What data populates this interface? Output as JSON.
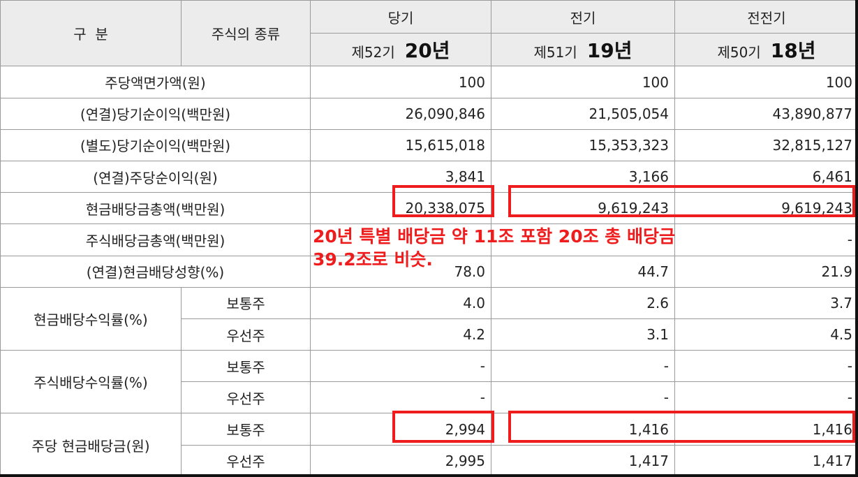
{
  "header": {
    "col_category": "구  분",
    "col_stock_type": "주식의 종류",
    "current": {
      "label": "당기",
      "period": "제52기",
      "year_note": "20년"
    },
    "previous": {
      "label": "전기",
      "period": "제51기",
      "year_note": "19년"
    },
    "before_previous": {
      "label": "전전기",
      "period": "제50기",
      "year_note": "18년"
    }
  },
  "rows": [
    {
      "label": "주당액면가액(원)",
      "values": [
        "100",
        "100",
        "100"
      ]
    },
    {
      "label": "(연결)당기순이익(백만원)",
      "values": [
        "26,090,846",
        "21,505,054",
        "43,890,877"
      ]
    },
    {
      "label": "(별도)당기순이익(백만원)",
      "values": [
        "15,615,018",
        "15,353,323",
        "32,815,127"
      ]
    },
    {
      "label": "(연결)주당순이익(원)",
      "values": [
        "3,841",
        "3,166",
        "6,461"
      ]
    },
    {
      "label": "현금배당금총액(백만원)",
      "values": [
        "20,338,075",
        "9,619,243",
        "9,619,243"
      ]
    },
    {
      "label": "주식배당금총액(백만원)",
      "values": [
        "",
        "",
        "-"
      ]
    },
    {
      "label": "(연결)현금배당성향(%)",
      "values": [
        "78.0",
        "44.7",
        "21.9"
      ]
    }
  ],
  "groups": [
    {
      "label": "현금배당수익률(%)",
      "sub": [
        {
          "type": "보통주",
          "values": [
            "4.0",
            "2.6",
            "3.7"
          ]
        },
        {
          "type": "우선주",
          "values": [
            "4.2",
            "3.1",
            "4.5"
          ]
        }
      ]
    },
    {
      "label": "주식배당수익률(%)",
      "sub": [
        {
          "type": "보통주",
          "values": [
            "-",
            "-",
            "-"
          ]
        },
        {
          "type": "우선주",
          "values": [
            "-",
            "-",
            "-"
          ]
        }
      ]
    },
    {
      "label": "주당 현금배당금(원)",
      "sub": [
        {
          "type": "보통주",
          "values": [
            "2,994",
            "1,416",
            "1,416"
          ]
        },
        {
          "type": "우선주",
          "values": [
            "2,995",
            "1,417",
            "1,417"
          ]
        }
      ]
    }
  ],
  "annotation": {
    "line1": "20년 특별 배당금 약 11조 포함 20조 총 배당금",
    "line2": "39.2조로 비슷.",
    "color": "#ee1c1c"
  }
}
